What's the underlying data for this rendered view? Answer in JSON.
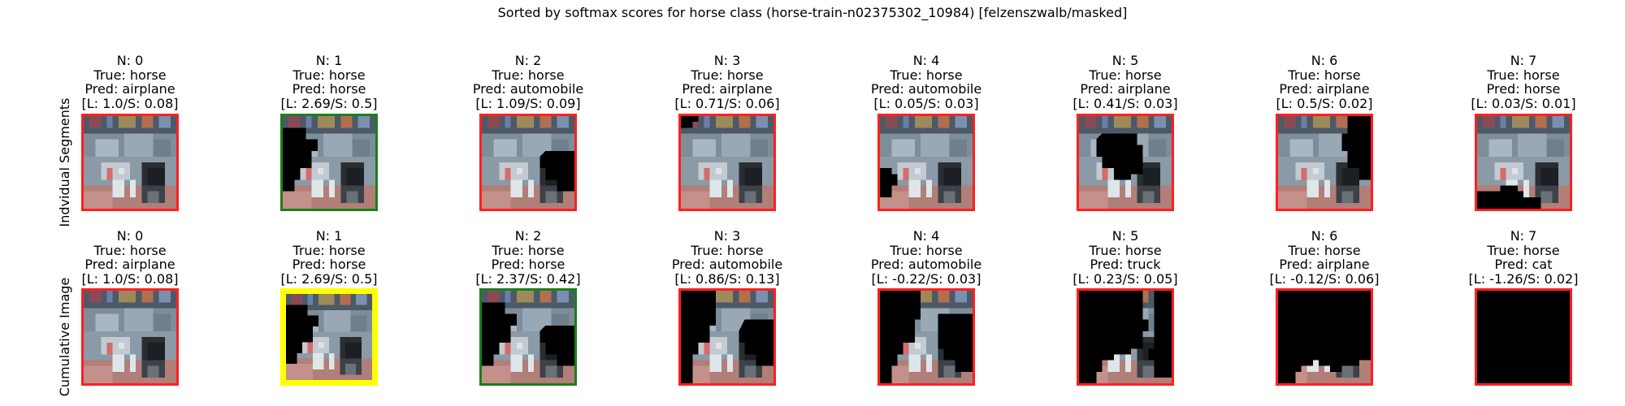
{
  "title": "Sorted by softmax scores for horse class (horse-train-n02375302_10984) [felzenszwalb/masked]",
  "row_labels": [
    "Indvidual Segments",
    "Cumulative Image"
  ],
  "colors": {
    "red": "#ff2020",
    "green": "#1a801a",
    "yellow": "#ffff00"
  },
  "rows": [
    {
      "panels": [
        {
          "n": "N: 0",
          "true_label": "True: horse",
          "pred": "Pred: airplane",
          "scores": "[L: 1.0/S: 0.08]",
          "border": "red",
          "mask": "none"
        },
        {
          "n": "N: 1",
          "true_label": "True: horse",
          "pred": "Pred: horse",
          "scores": "[L: 2.69/S: 0.5]",
          "border": "green",
          "mask": "seg1"
        },
        {
          "n": "N: 2",
          "true_label": "True: horse",
          "pred": "Pred: automobile",
          "scores": "[L: 1.09/S: 0.09]",
          "border": "red",
          "mask": "seg2"
        },
        {
          "n": "N: 3",
          "true_label": "True: horse",
          "pred": "Pred: airplane",
          "scores": "[L: 0.71/S: 0.06]",
          "border": "red",
          "mask": "seg3"
        },
        {
          "n": "N: 4",
          "true_label": "True: horse",
          "pred": "Pred: automobile",
          "scores": "[L: 0.05/S: 0.03]",
          "border": "red",
          "mask": "seg4"
        },
        {
          "n": "N: 5",
          "true_label": "True: horse",
          "pred": "Pred: airplane",
          "scores": "[L: 0.41/S: 0.03]",
          "border": "red",
          "mask": "seg5"
        },
        {
          "n": "N: 6",
          "true_label": "True: horse",
          "pred": "Pred: airplane",
          "scores": "[L: 0.5/S: 0.02]",
          "border": "red",
          "mask": "seg6"
        },
        {
          "n": "N: 7",
          "true_label": "True: horse",
          "pred": "Pred: horse",
          "scores": "[L: 0.03/S: 0.01]",
          "border": "red",
          "mask": "seg7"
        }
      ]
    },
    {
      "panels": [
        {
          "n": "N: 0",
          "true_label": "True: horse",
          "pred": "Pred: airplane",
          "scores": "[L: 1.0/S: 0.08]",
          "border": "red",
          "mask": "none"
        },
        {
          "n": "N: 1",
          "true_label": "True: horse",
          "pred": "Pred: horse",
          "scores": "[L: 2.69/S: 0.5]",
          "border": "yellow",
          "mask": "seg1"
        },
        {
          "n": "N: 2",
          "true_label": "True: horse",
          "pred": "Pred: horse",
          "scores": "[L: 2.37/S: 0.42]",
          "border": "green",
          "mask": "cum2"
        },
        {
          "n": "N: 3",
          "true_label": "True: horse",
          "pred": "Pred: automobile",
          "scores": "[L: 0.86/S: 0.13]",
          "border": "red",
          "mask": "cum3"
        },
        {
          "n": "N: 4",
          "true_label": "True: horse",
          "pred": "Pred: automobile",
          "scores": "[L: -0.22/S: 0.03]",
          "border": "red",
          "mask": "cum4"
        },
        {
          "n": "N: 5",
          "true_label": "True: horse",
          "pred": "Pred: truck",
          "scores": "[L: 0.23/S: 0.05]",
          "border": "red",
          "mask": "cum5"
        },
        {
          "n": "N: 6",
          "true_label": "True: horse",
          "pred": "Pred: airplane",
          "scores": "[L: -0.12/S: 0.06]",
          "border": "red",
          "mask": "cum6"
        },
        {
          "n": "N: 7",
          "true_label": "True: horse",
          "pred": "Pred: cat",
          "scores": "[L: -1.26/S: 0.02]",
          "border": "red",
          "mask": "full"
        }
      ]
    }
  ]
}
